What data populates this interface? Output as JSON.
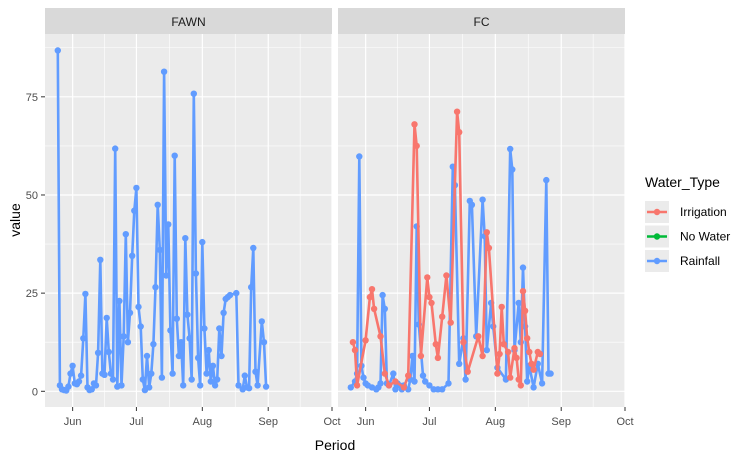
{
  "chart_data": {
    "type": "line",
    "xlabel": "Period",
    "ylabel": "value",
    "x_ticks": [
      "Jun",
      "Jul",
      "Aug",
      "Sep",
      "Oct"
    ],
    "x_tick_dates": [
      "2021-06-01",
      "2021-07-01",
      "2021-08-01",
      "2021-09-01",
      "2021-10-01"
    ],
    "xlim": [
      "2021-05-19",
      "2021-10-01"
    ],
    "y_ticks": [
      0,
      25,
      50,
      75
    ],
    "ylim": [
      -4,
      91
    ],
    "facets": [
      "FAWN",
      "FC"
    ],
    "legend": {
      "title": "Water_Type",
      "position": "right",
      "entries": [
        {
          "name": "Irrigation",
          "color": "#F8766D"
        },
        {
          "name": "No Water",
          "color": "#00BA38"
        },
        {
          "name": "Rainfall",
          "color": "#619CFF"
        }
      ]
    },
    "series": [
      {
        "facet": "FAWN",
        "name": "Rainfall",
        "color": "#619CFF",
        "points": [
          [
            "2021-05-25",
            86.8
          ],
          [
            "2021-05-26",
            1.5
          ],
          [
            "2021-05-27",
            0.5
          ],
          [
            "2021-05-28",
            0.3
          ],
          [
            "2021-05-29",
            0.2
          ],
          [
            "2021-05-30",
            1.2
          ],
          [
            "2021-05-31",
            4.5
          ],
          [
            "2021-06-01",
            6.5
          ],
          [
            "2021-06-02",
            2.0
          ],
          [
            "2021-06-03",
            1.8
          ],
          [
            "2021-06-04",
            2.5
          ],
          [
            "2021-06-05",
            4.0
          ],
          [
            "2021-06-06",
            13.5
          ],
          [
            "2021-06-07",
            24.8
          ],
          [
            "2021-06-08",
            1.0
          ],
          [
            "2021-06-09",
            0.3
          ],
          [
            "2021-06-10",
            0.5
          ],
          [
            "2021-06-11",
            2.0
          ],
          [
            "2021-06-12",
            1.5
          ],
          [
            "2021-06-13",
            9.8
          ],
          [
            "2021-06-14",
            33.5
          ],
          [
            "2021-06-15",
            4.5
          ],
          [
            "2021-06-16",
            4.2
          ],
          [
            "2021-06-17",
            18.7
          ],
          [
            "2021-06-18",
            10.0
          ],
          [
            "2021-06-19",
            4.5
          ],
          [
            "2021-06-20",
            3.0
          ],
          [
            "2021-06-21",
            61.8
          ],
          [
            "2021-06-22",
            1.2
          ],
          [
            "2021-06-23",
            23.0
          ],
          [
            "2021-06-24",
            1.5
          ],
          [
            "2021-06-25",
            14.0
          ],
          [
            "2021-06-26",
            40.0
          ],
          [
            "2021-06-27",
            12.5
          ],
          [
            "2021-06-28",
            20.0
          ],
          [
            "2021-06-29",
            34.5
          ],
          [
            "2021-06-30",
            46.0
          ],
          [
            "2021-07-01",
            51.8
          ],
          [
            "2021-07-02",
            21.5
          ],
          [
            "2021-07-03",
            16.5
          ],
          [
            "2021-07-04",
            3.0
          ],
          [
            "2021-07-05",
            0.3
          ],
          [
            "2021-07-06",
            9.0
          ],
          [
            "2021-07-07",
            1.0
          ],
          [
            "2021-07-08",
            4.5
          ],
          [
            "2021-07-09",
            12.0
          ],
          [
            "2021-07-10",
            26.5
          ],
          [
            "2021-07-11",
            47.5
          ],
          [
            "2021-07-12",
            36.0
          ],
          [
            "2021-07-13",
            3.5
          ],
          [
            "2021-07-14",
            81.4
          ],
          [
            "2021-07-15",
            29.5
          ],
          [
            "2021-07-16",
            42.5
          ],
          [
            "2021-07-17",
            15.5
          ],
          [
            "2021-07-18",
            4.5
          ],
          [
            "2021-07-19",
            60.0
          ],
          [
            "2021-07-20",
            18.5
          ],
          [
            "2021-07-21",
            9.0
          ],
          [
            "2021-07-22",
            12.5
          ],
          [
            "2021-07-23",
            1.5
          ],
          [
            "2021-07-24",
            39.0
          ],
          [
            "2021-07-25",
            19.5
          ],
          [
            "2021-07-26",
            13.5
          ],
          [
            "2021-07-27",
            3.0
          ],
          [
            "2021-07-28",
            75.8
          ],
          [
            "2021-07-29",
            30.0
          ],
          [
            "2021-07-30",
            8.5
          ],
          [
            "2021-07-31",
            1.5
          ],
          [
            "2021-08-01",
            38.0
          ],
          [
            "2021-08-02",
            16.0
          ],
          [
            "2021-08-03",
            4.5
          ],
          [
            "2021-08-04",
            10.5
          ],
          [
            "2021-08-05",
            2.5
          ],
          [
            "2021-08-06",
            6.5
          ],
          [
            "2021-08-07",
            1.5
          ],
          [
            "2021-08-08",
            3.0
          ],
          [
            "2021-08-09",
            16.0
          ],
          [
            "2021-08-10",
            9.0
          ],
          [
            "2021-08-11",
            20.0
          ],
          [
            "2021-08-12",
            23.5
          ],
          [
            "2021-08-13",
            24.0
          ],
          [
            "2021-08-14",
            24.5
          ],
          [
            "2021-08-17",
            25.0
          ],
          [
            "2021-08-18",
            1.5
          ],
          [
            "2021-08-20",
            0.5
          ],
          [
            "2021-08-21",
            4.0
          ],
          [
            "2021-08-22",
            1.0
          ],
          [
            "2021-08-23",
            0.8
          ],
          [
            "2021-08-24",
            26.5
          ],
          [
            "2021-08-25",
            36.5
          ],
          [
            "2021-08-26",
            5.0
          ],
          [
            "2021-08-27",
            1.5
          ],
          [
            "2021-08-29",
            17.8
          ],
          [
            "2021-08-30",
            12.5
          ],
          [
            "2021-08-31",
            1.2
          ]
        ]
      },
      {
        "facet": "FC",
        "name": "Rainfall",
        "color": "#619CFF",
        "points": [
          [
            "2021-05-25",
            1.0
          ],
          [
            "2021-05-27",
            2.5
          ],
          [
            "2021-05-28",
            4.5
          ],
          [
            "2021-05-29",
            59.8
          ],
          [
            "2021-05-30",
            6.5
          ],
          [
            "2021-05-31",
            3.5
          ],
          [
            "2021-06-01",
            2.0
          ],
          [
            "2021-06-02",
            1.5
          ],
          [
            "2021-06-04",
            1.0
          ],
          [
            "2021-06-06",
            0.5
          ],
          [
            "2021-06-07",
            1.0
          ],
          [
            "2021-06-08",
            2.0
          ],
          [
            "2021-06-09",
            24.5
          ],
          [
            "2021-06-10",
            21.0
          ],
          [
            "2021-06-11",
            2.0
          ],
          [
            "2021-06-12",
            1.5
          ],
          [
            "2021-06-14",
            4.5
          ],
          [
            "2021-06-15",
            0.5
          ],
          [
            "2021-06-16",
            2.0
          ],
          [
            "2021-06-17",
            1.5
          ],
          [
            "2021-06-18",
            0.5
          ],
          [
            "2021-06-19",
            1.5
          ],
          [
            "2021-06-21",
            0.5
          ],
          [
            "2021-06-22",
            3.0
          ],
          [
            "2021-06-23",
            9.0
          ],
          [
            "2021-06-24",
            2.5
          ],
          [
            "2021-06-25",
            42.0
          ],
          [
            "2021-06-26",
            17.0
          ],
          [
            "2021-06-28",
            4.0
          ],
          [
            "2021-06-29",
            2.5
          ],
          [
            "2021-07-01",
            1.5
          ],
          [
            "2021-07-03",
            0.5
          ],
          [
            "2021-07-05",
            0.5
          ],
          [
            "2021-07-07",
            0.5
          ],
          [
            "2021-07-10",
            2.0
          ],
          [
            "2021-07-12",
            57.2
          ],
          [
            "2021-07-13",
            52.5
          ],
          [
            "2021-07-15",
            7.0
          ],
          [
            "2021-07-17",
            13.5
          ],
          [
            "2021-07-18",
            3.0
          ],
          [
            "2021-07-20",
            48.5
          ],
          [
            "2021-07-21",
            47.5
          ],
          [
            "2021-07-23",
            14.0
          ],
          [
            "2021-07-26",
            48.8
          ],
          [
            "2021-07-27",
            39.5
          ],
          [
            "2021-07-28",
            10.5
          ],
          [
            "2021-07-30",
            22.5
          ],
          [
            "2021-07-31",
            16.5
          ],
          [
            "2021-08-02",
            6.0
          ],
          [
            "2021-08-06",
            3.0
          ],
          [
            "2021-08-08",
            61.7
          ],
          [
            "2021-08-09",
            56.5
          ],
          [
            "2021-08-10",
            10.5
          ],
          [
            "2021-08-12",
            22.5
          ],
          [
            "2021-08-13",
            12.5
          ],
          [
            "2021-08-14",
            31.5
          ],
          [
            "2021-08-15",
            16.5
          ],
          [
            "2021-08-16",
            2.5
          ],
          [
            "2021-08-17",
            6.5
          ],
          [
            "2021-08-19",
            1.0
          ],
          [
            "2021-08-21",
            7.0
          ],
          [
            "2021-08-23",
            2.0
          ],
          [
            "2021-08-25",
            53.8
          ],
          [
            "2021-08-26",
            4.5
          ],
          [
            "2021-08-27",
            4.5
          ]
        ]
      },
      {
        "facet": "FC",
        "name": "Irrigation",
        "color": "#F8766D",
        "points": [
          [
            "2021-05-26",
            12.5
          ],
          [
            "2021-05-27",
            10.5
          ],
          [
            "2021-05-28",
            1.5
          ],
          [
            "2021-06-01",
            13.0
          ],
          [
            "2021-06-03",
            24.0
          ],
          [
            "2021-06-04",
            26.0
          ],
          [
            "2021-06-05",
            21.0
          ],
          [
            "2021-06-08",
            14.0
          ],
          [
            "2021-06-10",
            4.5
          ],
          [
            "2021-06-12",
            1.5
          ],
          [
            "2021-06-15",
            2.5
          ],
          [
            "2021-06-19",
            1.0
          ],
          [
            "2021-06-21",
            4.0
          ],
          [
            "2021-06-24",
            68.0
          ],
          [
            "2021-06-25",
            62.5
          ],
          [
            "2021-06-27",
            9.0
          ],
          [
            "2021-06-30",
            29.0
          ],
          [
            "2021-07-01",
            24.0
          ],
          [
            "2021-07-02",
            22.5
          ],
          [
            "2021-07-04",
            12.0
          ],
          [
            "2021-07-05",
            8.5
          ],
          [
            "2021-07-07",
            19.0
          ],
          [
            "2021-07-09",
            29.5
          ],
          [
            "2021-07-11",
            17.5
          ],
          [
            "2021-07-14",
            71.2
          ],
          [
            "2021-07-15",
            66.0
          ],
          [
            "2021-07-17",
            12.5
          ],
          [
            "2021-07-19",
            5.0
          ],
          [
            "2021-07-24",
            14.0
          ],
          [
            "2021-07-26",
            9.0
          ],
          [
            "2021-07-28",
            40.5
          ],
          [
            "2021-07-29",
            36.5
          ],
          [
            "2021-08-02",
            4.5
          ],
          [
            "2021-08-03",
            9.5
          ],
          [
            "2021-08-04",
            21.5
          ],
          [
            "2021-08-05",
            12.0
          ],
          [
            "2021-08-07",
            10.0
          ],
          [
            "2021-08-08",
            3.5
          ],
          [
            "2021-08-10",
            11.0
          ],
          [
            "2021-08-11",
            8.5
          ],
          [
            "2021-08-12",
            3.0
          ],
          [
            "2021-08-13",
            1.5
          ],
          [
            "2021-08-14",
            25.5
          ],
          [
            "2021-08-15",
            20.5
          ],
          [
            "2021-08-16",
            13.5
          ],
          [
            "2021-08-17",
            10.0
          ],
          [
            "2021-08-18",
            7.0
          ],
          [
            "2021-08-19",
            5.5
          ],
          [
            "2021-08-21",
            10.0
          ],
          [
            "2021-08-22",
            9.5
          ]
        ]
      }
    ]
  }
}
